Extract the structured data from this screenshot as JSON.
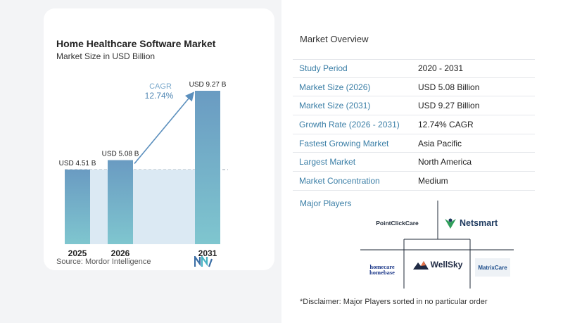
{
  "chart": {
    "title": "Home Healthcare Software Market",
    "subtitle": "Market Size in USD Billion",
    "source": "Source:  Mordor Intelligence",
    "cagr_label": "CAGR",
    "cagr_value": "12.74%"
  },
  "chart_data": {
    "type": "bar",
    "categories": [
      "2025",
      "2026",
      "2031"
    ],
    "values": [
      4.51,
      5.08,
      9.27
    ],
    "data_labels": [
      "USD 4.51 B",
      "USD 5.08 B",
      "USD 9.27 B"
    ],
    "title": "Home Healthcare Software Market",
    "subtitle": "Market Size in USD Billion",
    "annotation": "CAGR 12.74%",
    "grid": false,
    "colors": {
      "bar_top": "#6a9bc2",
      "bar_bottom": "#7fc6cf",
      "baseline_fill": "#dbe9f3",
      "arrow": "#5b8fbd"
    }
  },
  "overview": {
    "title": "Market Overview",
    "rows": [
      {
        "key": "Study Period",
        "value": "2020 - 2031"
      },
      {
        "key": "Market Size (2026)",
        "value": "USD 5.08 Billion"
      },
      {
        "key": "Market Size (2031)",
        "value": "USD 9.27 Billion"
      },
      {
        "key": "Growth Rate (2026 - 2031)",
        "value": "12.74% CAGR"
      },
      {
        "key": "Fastest Growing Market",
        "value": "Asia Pacific"
      },
      {
        "key": "Largest Market",
        "value": "North America"
      },
      {
        "key": "Market Concentration",
        "value": "Medium"
      }
    ]
  },
  "players": {
    "title": "Major Players",
    "logos": {
      "pointclickcare": "PointClickCare",
      "netsmart": "Netsmart",
      "homecare_top": "homecare",
      "homecare_bottom": "homebase",
      "wellsky": "WellSky",
      "matrixcare": "MatrixCare"
    },
    "disclaimer": "*Disclaimer: Major Players sorted in no particular order"
  }
}
